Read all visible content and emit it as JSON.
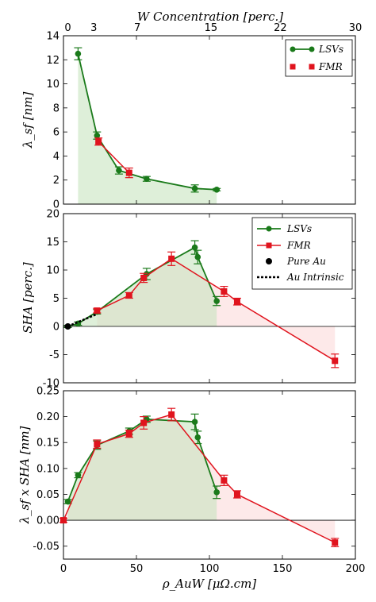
{
  "colors": {
    "lsv": "#1a7a1a",
    "fmr": "#e0141e",
    "pure": "#000000",
    "fill_green": "#c8e4c0",
    "fill_red": "#fbdada",
    "fill_overlap": "#e2d2c2"
  },
  "top_axis": {
    "title": "W Concentration [perc.]",
    "ticks": [
      {
        "label": "0",
        "rho": 3
      },
      {
        "label": "3",
        "rho": 20.8
      },
      {
        "label": "7",
        "rho": 50.6
      },
      {
        "label": "15",
        "rho": 101
      },
      {
        "label": "22",
        "rho": 148.6
      },
      {
        "label": "30",
        "rho": 200
      }
    ]
  },
  "x_axis": {
    "title": "ρ_AuW [μΩ.cm]",
    "ticks": [
      "0",
      "50",
      "100",
      "150",
      "200"
    ]
  },
  "chart_data": [
    {
      "type": "line",
      "ylabel": "λ_sf [nm]",
      "xlim": [
        0,
        200
      ],
      "ylim": [
        0,
        14
      ],
      "yticks": [
        "0",
        "2",
        "4",
        "6",
        "8",
        "10",
        "12",
        "14"
      ],
      "legend": [
        "LSVs",
        "FMR"
      ],
      "legend_position": "top-right",
      "series": [
        {
          "name": "LSVs",
          "x": [
            10,
            23,
            38,
            57,
            90,
            105
          ],
          "y": [
            12.5,
            5.7,
            2.8,
            2.1,
            1.3,
            1.2
          ],
          "err": [
            0.5,
            0.3,
            0.3,
            0.2,
            0.3,
            0.1
          ]
        },
        {
          "name": "FMR",
          "x": [
            24,
            45
          ],
          "y": [
            5.2,
            2.6
          ],
          "err": [
            0.3,
            0.4
          ]
        }
      ]
    },
    {
      "type": "line",
      "ylabel": "SHA [perc.]",
      "xlim": [
        0,
        200
      ],
      "ylim": [
        -10,
        20
      ],
      "yticks": [
        "-10",
        "-5",
        "0",
        "5",
        "10",
        "15",
        "20"
      ],
      "legend": [
        "LSVs",
        "FMR",
        "Pure Au",
        "Au Intrinsic"
      ],
      "legend_position": "top-right",
      "series": [
        {
          "name": "LSVs",
          "x": [
            3,
            10,
            23,
            57,
            90,
            92,
            105
          ],
          "y": [
            0,
            0.5,
            2.6,
            9.3,
            14,
            12.3,
            4.5
          ],
          "err": [
            0.2,
            0.3,
            0.4,
            1,
            1.2,
            1.2,
            0.8
          ]
        },
        {
          "name": "FMR",
          "x": [
            23,
            45,
            55,
            74,
            110,
            119,
            186
          ],
          "y": [
            2.8,
            5.5,
            8.6,
            12,
            6.2,
            4.4,
            -6.1
          ],
          "err": [
            0.4,
            0.5,
            0.8,
            1.2,
            0.9,
            0.6,
            1.2
          ]
        },
        {
          "name": "Pure Au",
          "x": [
            3
          ],
          "y": [
            0
          ]
        },
        {
          "name": "Au Intrinsic",
          "x": [
            3,
            23
          ],
          "y": [
            0,
            2.2
          ]
        }
      ]
    },
    {
      "type": "line",
      "ylabel": "λ_sf x SHA [nm]",
      "xlim": [
        0,
        200
      ],
      "ylim": [
        -0.075,
        0.25
      ],
      "yticks": [
        "-0.05",
        "0.00",
        "0.05",
        "0.10",
        "0.15",
        "0.20",
        "0.25"
      ],
      "series": [
        {
          "name": "LSVs",
          "x": [
            3,
            10,
            23,
            45,
            57,
            90,
            92,
            105
          ],
          "y": [
            0.036,
            0.087,
            0.145,
            0.172,
            0.195,
            0.19,
            0.16,
            0.054
          ],
          "err": [
            0.004,
            0.005,
            0.008,
            0.006,
            0.006,
            0.015,
            0.012,
            0.012
          ]
        },
        {
          "name": "FMR",
          "x": [
            0,
            23,
            45,
            55,
            74,
            110,
            119,
            186
          ],
          "y": [
            0,
            0.147,
            0.167,
            0.188,
            0.204,
            0.077,
            0.05,
            -0.043
          ],
          "err": [
            0.004,
            0.008,
            0.007,
            0.012,
            0.012,
            0.01,
            0.007,
            0.008
          ]
        }
      ]
    }
  ]
}
